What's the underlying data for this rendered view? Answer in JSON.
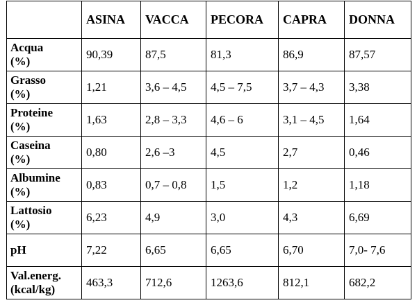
{
  "table": {
    "columns": [
      "ASINA",
      "VACCA",
      "PECORA",
      "CAPRA",
      "DONNA"
    ],
    "rows": [
      [
        "Acqua\n(%)",
        "90,39",
        "87,5",
        "81,3",
        "86,9",
        "87,57"
      ],
      [
        "Grasso\n(%)",
        "1,21",
        "3,6 – 4,5",
        "4,5 – 7,5",
        "3,7 – 4,3",
        "3,38"
      ],
      [
        "Proteine\n(%)",
        "1,63",
        "2,8 – 3,3",
        "4,6 – 6",
        "3,1 – 4,5",
        "1,64"
      ],
      [
        "Caseina\n(%)",
        "0,80",
        "2,6 –3",
        "4,5",
        "2,7",
        "0,46"
      ],
      [
        "Albumine\n(%)",
        "0,83",
        "0,7 – 0,8",
        "1,5",
        "1,2",
        "1,18"
      ],
      [
        "Lattosio\n(%)",
        "6,23",
        "4,9",
        "3,0",
        "4,3",
        "6,69"
      ],
      [
        "pH",
        "7,22",
        "6,65",
        "6,65",
        "6,70",
        "7,0- 7,6"
      ],
      [
        "Val.energ.\n(kcal/kg)",
        "463,3",
        "712,6",
        "1263,6",
        "812,1",
        "682,2"
      ]
    ]
  }
}
